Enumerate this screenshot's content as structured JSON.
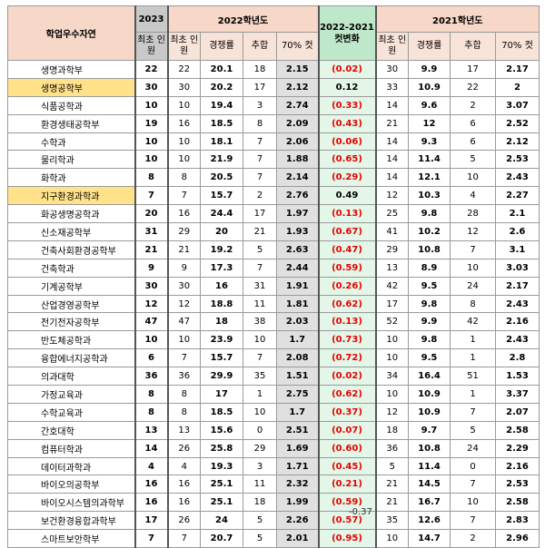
{
  "headers": {
    "major": "학업우수자연",
    "y2023": "2023",
    "y2022": "2022학년도",
    "change": "2022-2021 컷변화",
    "y2021": "2021학년도",
    "initial_quota": "최초 인원",
    "competition": "경쟁률",
    "additional": "추합",
    "cut70": "70% 컷"
  },
  "rows": [
    {
      "major": "생명과학부",
      "q23": "22",
      "q22": "22",
      "c22": "20.1",
      "a22": "18",
      "k22": "2.15",
      "chg": "(0.02)",
      "q21": "30",
      "c21": "9.9",
      "a21": "17",
      "k21": "2.17",
      "highlight": false,
      "negative": true
    },
    {
      "major": "생명공학부",
      "q23": "30",
      "q22": "30",
      "c22": "20.2",
      "a22": "17",
      "k22": "2.12",
      "chg": "0.12",
      "q21": "33",
      "c21": "10.9",
      "a21": "22",
      "k21": "2",
      "highlight": true,
      "negative": false
    },
    {
      "major": "식품공학과",
      "q23": "10",
      "q22": "10",
      "c22": "19.4",
      "a22": "3",
      "k22": "2.74",
      "chg": "(0.33)",
      "q21": "14",
      "c21": "9.6",
      "a21": "2",
      "k21": "3.07",
      "highlight": false,
      "negative": true
    },
    {
      "major": "환경생태공학부",
      "q23": "19",
      "q22": "16",
      "c22": "18.5",
      "a22": "8",
      "k22": "2.09",
      "chg": "(0.43)",
      "q21": "21",
      "c21": "12",
      "a21": "6",
      "k21": "2.52",
      "highlight": false,
      "negative": true
    },
    {
      "major": "수학과",
      "q23": "10",
      "q22": "10",
      "c22": "18.1",
      "a22": "7",
      "k22": "2.06",
      "chg": "(0.06)",
      "q21": "14",
      "c21": "9.3",
      "a21": "6",
      "k21": "2.12",
      "highlight": false,
      "negative": true
    },
    {
      "major": "물리학과",
      "q23": "10",
      "q22": "10",
      "c22": "21.9",
      "a22": "7",
      "k22": "1.88",
      "chg": "(0.65)",
      "q21": "14",
      "c21": "11.4",
      "a21": "5",
      "k21": "2.53",
      "highlight": false,
      "negative": true
    },
    {
      "major": "화학과",
      "q23": "8",
      "q22": "8",
      "c22": "20.5",
      "a22": "7",
      "k22": "2.14",
      "chg": "(0.29)",
      "q21": "14",
      "c21": "12.1",
      "a21": "10",
      "k21": "2.43",
      "highlight": false,
      "negative": true
    },
    {
      "major": "지구환경과학과",
      "q23": "7",
      "q22": "7",
      "c22": "15.7",
      "a22": "2",
      "k22": "2.76",
      "chg": "0.49",
      "q21": "12",
      "c21": "10.3",
      "a21": "4",
      "k21": "2.27",
      "highlight": true,
      "negative": false
    },
    {
      "major": "화공생명공학과",
      "q23": "20",
      "q22": "16",
      "c22": "24.4",
      "a22": "17",
      "k22": "1.97",
      "chg": "(0.13)",
      "q21": "25",
      "c21": "9.8",
      "a21": "28",
      "k21": "2.1",
      "highlight": false,
      "negative": true
    },
    {
      "major": "신소재공학부",
      "q23": "31",
      "q22": "29",
      "c22": "20",
      "a22": "21",
      "k22": "1.93",
      "chg": "(0.67)",
      "q21": "41",
      "c21": "10.2",
      "a21": "12",
      "k21": "2.6",
      "highlight": false,
      "negative": true
    },
    {
      "major": "건축사회환경공학부",
      "q23": "21",
      "q22": "21",
      "c22": "19.2",
      "a22": "5",
      "k22": "2.63",
      "chg": "(0.47)",
      "q21": "29",
      "c21": "10.8",
      "a21": "7",
      "k21": "3.1",
      "highlight": false,
      "negative": true
    },
    {
      "major": "건축학과",
      "q23": "9",
      "q22": "9",
      "c22": "17.3",
      "a22": "7",
      "k22": "2.44",
      "chg": "(0.59)",
      "q21": "13",
      "c21": "8.9",
      "a21": "10",
      "k21": "3.03",
      "highlight": false,
      "negative": true
    },
    {
      "major": "기계공학부",
      "q23": "30",
      "q22": "30",
      "c22": "16",
      "a22": "31",
      "k22": "1.91",
      "chg": "(0.26)",
      "q21": "42",
      "c21": "9.5",
      "a21": "24",
      "k21": "2.17",
      "highlight": false,
      "negative": true
    },
    {
      "major": "산업경영공학부",
      "q23": "12",
      "q22": "12",
      "c22": "18.8",
      "a22": "11",
      "k22": "1.81",
      "chg": "(0.62)",
      "q21": "17",
      "c21": "9.8",
      "a21": "8",
      "k21": "2.43",
      "highlight": false,
      "negative": true
    },
    {
      "major": "전기전자공학부",
      "q23": "47",
      "q22": "47",
      "c22": "18",
      "a22": "38",
      "k22": "2.03",
      "chg": "(0.13)",
      "q21": "52",
      "c21": "9.9",
      "a21": "42",
      "k21": "2.16",
      "highlight": false,
      "negative": true
    },
    {
      "major": "반도체공학과",
      "q23": "10",
      "q22": "10",
      "c22": "23.9",
      "a22": "10",
      "k22": "1.7",
      "chg": "(0.73)",
      "q21": "10",
      "c21": "9.8",
      "a21": "1",
      "k21": "2.43",
      "highlight": false,
      "negative": true
    },
    {
      "major": "융합에너지공학과",
      "q23": "6",
      "q22": "7",
      "c22": "15.7",
      "a22": "7",
      "k22": "2.08",
      "chg": "(0.72)",
      "q21": "10",
      "c21": "9.5",
      "a21": "1",
      "k21": "2.8",
      "highlight": false,
      "negative": true
    },
    {
      "major": "의과대학",
      "q23": "36",
      "q22": "36",
      "c22": "29.9",
      "a22": "35",
      "k22": "1.51",
      "chg": "(0.02)",
      "q21": "34",
      "c21": "16.4",
      "a21": "51",
      "k21": "1.53",
      "highlight": false,
      "negative": true
    },
    {
      "major": "가정교육과",
      "q23": "8",
      "q22": "8",
      "c22": "17",
      "a22": "1",
      "k22": "2.75",
      "chg": "(0.62)",
      "q21": "10",
      "c21": "10.9",
      "a21": "1",
      "k21": "3.37",
      "highlight": false,
      "negative": true
    },
    {
      "major": "수학교육과",
      "q23": "8",
      "q22": "8",
      "c22": "18.5",
      "a22": "10",
      "k22": "1.7",
      "chg": "(0.37)",
      "q21": "12",
      "c21": "10.9",
      "a21": "7",
      "k21": "2.07",
      "highlight": false,
      "negative": true
    },
    {
      "major": "간호대학",
      "q23": "13",
      "q22": "13",
      "c22": "15.6",
      "a22": "0",
      "k22": "2.51",
      "chg": "(0.07)",
      "q21": "18",
      "c21": "9.7",
      "a21": "5",
      "k21": "2.58",
      "highlight": false,
      "negative": true
    },
    {
      "major": "컴퓨터학과",
      "q23": "14",
      "q22": "26",
      "c22": "25.8",
      "a22": "29",
      "k22": "1.69",
      "chg": "(0.60)",
      "q21": "36",
      "c21": "10.8",
      "a21": "24",
      "k21": "2.29",
      "highlight": false,
      "negative": true
    },
    {
      "major": "데이터과학과",
      "q23": "4",
      "q22": "4",
      "c22": "19.3",
      "a22": "3",
      "k22": "1.71",
      "chg": "(0.45)",
      "q21": "5",
      "c21": "11.4",
      "a21": "0",
      "k21": "2.16",
      "highlight": false,
      "negative": true
    },
    {
      "major": "바이오의공학부",
      "q23": "16",
      "q22": "16",
      "c22": "25.1",
      "a22": "11",
      "k22": "2.32",
      "chg": "(0.21)",
      "q21": "21",
      "c21": "14.5",
      "a21": "7",
      "k21": "2.53",
      "highlight": false,
      "negative": true
    },
    {
      "major": "바이오시스템의과학부",
      "q23": "16",
      "q22": "16",
      "c22": "25.1",
      "a22": "18",
      "k22": "1.99",
      "chg": "(0.59)",
      "q21": "21",
      "c21": "16.7",
      "a21": "10",
      "k21": "2.58",
      "highlight": false,
      "negative": true
    },
    {
      "major": "보건환경융합과학부",
      "q23": "17",
      "q22": "26",
      "c22": "24",
      "a22": "5",
      "k22": "2.26",
      "chg": "(0.57)",
      "q21": "35",
      "c21": "12.6",
      "a21": "7",
      "k21": "2.83",
      "highlight": false,
      "negative": true
    },
    {
      "major": "스마트보안학부",
      "q23": "7",
      "q22": "7",
      "c22": "20.7",
      "a22": "5",
      "k22": "2.01",
      "chg": "(0.95)",
      "q21": "10",
      "c21": "14.7",
      "a21": "2",
      "k21": "2.96",
      "highlight": false,
      "negative": true
    }
  ],
  "footnote": "-0.37"
}
